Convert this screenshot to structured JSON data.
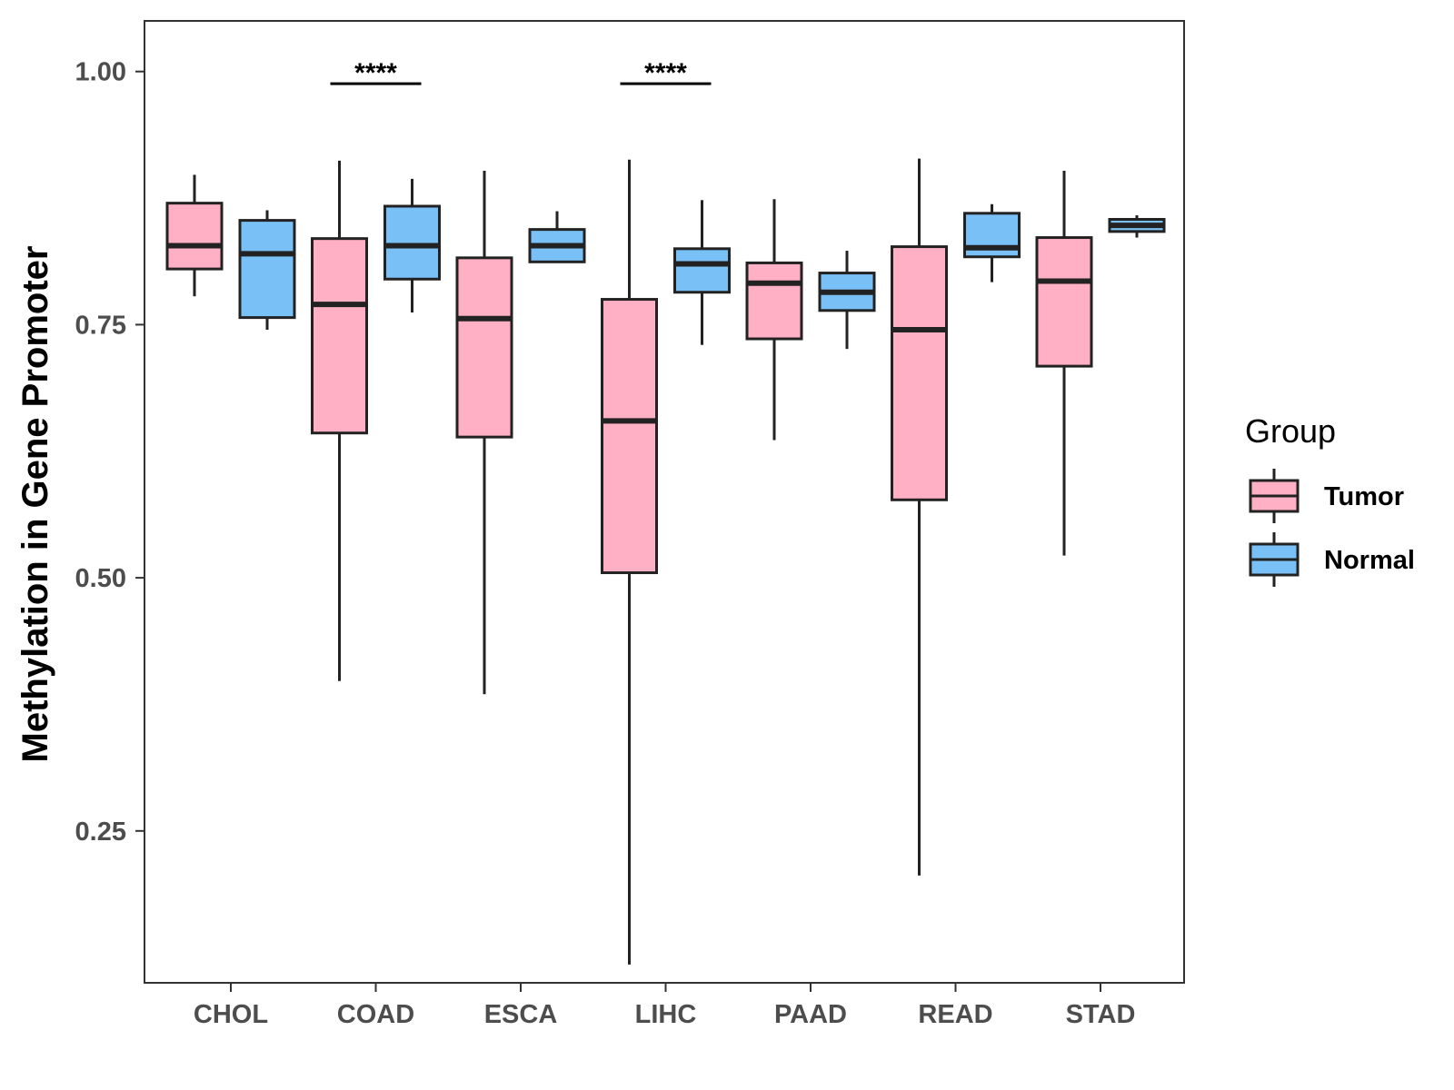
{
  "chart_data": {
    "type": "boxplot",
    "title": "",
    "xlabel": "",
    "ylabel": "Methylation in Gene Promoter",
    "ylim": [
      0.1,
      1.05
    ],
    "yticks": [
      0.25,
      0.5,
      0.75,
      1.0
    ],
    "ytick_labels": [
      "0.25",
      "0.50",
      "0.75",
      "1.00"
    ],
    "categories": [
      "CHOL",
      "COAD",
      "ESCA",
      "LIHC",
      "PAAD",
      "READ",
      "STAD"
    ],
    "colors": {
      "Tumor": "#ffb0c4",
      "Normal": "#79c0f7",
      "stroke": "#222222"
    },
    "series": [
      {
        "name": "Tumor",
        "boxes": [
          {
            "lower": 0.778,
            "q1": 0.805,
            "median": 0.828,
            "q3": 0.87,
            "upper": 0.898
          },
          {
            "lower": 0.398,
            "q1": 0.643,
            "median": 0.77,
            "q3": 0.835,
            "upper": 0.912
          },
          {
            "lower": 0.385,
            "q1": 0.639,
            "median": 0.756,
            "q3": 0.816,
            "upper": 0.902
          },
          {
            "lower": 0.118,
            "q1": 0.505,
            "median": 0.655,
            "q3": 0.775,
            "upper": 0.913
          },
          {
            "lower": 0.636,
            "q1": 0.736,
            "median": 0.791,
            "q3": 0.811,
            "upper": 0.874
          },
          {
            "lower": 0.206,
            "q1": 0.577,
            "median": 0.745,
            "q3": 0.827,
            "upper": 0.914
          },
          {
            "lower": 0.522,
            "q1": 0.709,
            "median": 0.793,
            "q3": 0.836,
            "upper": 0.902
          }
        ]
      },
      {
        "name": "Normal",
        "boxes": [
          {
            "lower": 0.745,
            "q1": 0.757,
            "median": 0.82,
            "q3": 0.853,
            "upper": 0.863
          },
          {
            "lower": 0.762,
            "q1": 0.795,
            "median": 0.828,
            "q3": 0.867,
            "upper": 0.894
          },
          {
            "lower": 0.812,
            "q1": 0.812,
            "median": 0.828,
            "q3": 0.844,
            "upper": 0.862
          },
          {
            "lower": 0.73,
            "q1": 0.782,
            "median": 0.81,
            "q3": 0.825,
            "upper": 0.873
          },
          {
            "lower": 0.726,
            "q1": 0.764,
            "median": 0.782,
            "q3": 0.801,
            "upper": 0.823
          },
          {
            "lower": 0.792,
            "q1": 0.817,
            "median": 0.826,
            "q3": 0.86,
            "upper": 0.869
          },
          {
            "lower": 0.836,
            "q1": 0.842,
            "median": 0.848,
            "q3": 0.854,
            "upper": 0.858
          }
        ]
      }
    ],
    "significance": [
      {
        "category": "COAD",
        "label": "****",
        "y": 0.988
      },
      {
        "category": "LIHC",
        "label": "****",
        "y": 0.988
      }
    ],
    "legend": {
      "title": "Group",
      "position": "right",
      "entries": [
        "Tumor",
        "Normal"
      ]
    }
  }
}
